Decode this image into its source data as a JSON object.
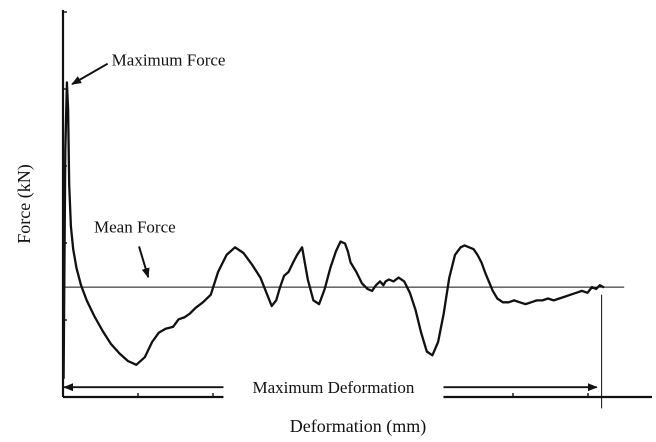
{
  "chart_data": {
    "type": "line",
    "title": "",
    "xlabel": "Deformation (mm)",
    "ylabel": "Force (kN)",
    "xlim": [
      0,
      10
    ],
    "ylim": [
      0,
      10
    ],
    "grid": false,
    "legend": "none",
    "x_tick_count": 8,
    "y_tick_count": 6,
    "series": [
      {
        "color": "#111111",
        "x": [
          0.01,
          0.04,
          0.07,
          0.09,
          0.11,
          0.14,
          0.18,
          0.24,
          0.32,
          0.42,
          0.55,
          0.7,
          0.85,
          1.0,
          1.15,
          1.3,
          1.45,
          1.58,
          1.7,
          1.82,
          1.95,
          2.05,
          2.15,
          2.25,
          2.35,
          2.48,
          2.62,
          2.75,
          2.9,
          3.05,
          3.2,
          3.35,
          3.5,
          3.62,
          3.7,
          3.78,
          3.85,
          3.92,
          4.0,
          4.08,
          4.15,
          4.24,
          4.34,
          4.44,
          4.54,
          4.64,
          4.74,
          4.84,
          4.92,
          5.0,
          5.05,
          5.1,
          5.2,
          5.3,
          5.4,
          5.48,
          5.55,
          5.62,
          5.68,
          5.72,
          5.78,
          5.86,
          5.95,
          6.05,
          6.15,
          6.25,
          6.35,
          6.45,
          6.55,
          6.65,
          6.75,
          6.85,
          6.95,
          7.05,
          7.12,
          7.2,
          7.28,
          7.35,
          7.42,
          7.48,
          7.55,
          7.62,
          7.7,
          7.8,
          7.9,
          8.0,
          8.1,
          8.2,
          8.3,
          8.4,
          8.5,
          8.6,
          8.7,
          8.8,
          8.9,
          9.0,
          9.1,
          9.2,
          9.3,
          9.38,
          9.45,
          9.52,
          9.58
        ],
        "y": [
          0.5,
          6.5,
          8.3,
          7.6,
          5.6,
          4.5,
          3.9,
          3.4,
          2.95,
          2.55,
          2.15,
          1.75,
          1.4,
          1.15,
          0.95,
          0.85,
          1.05,
          1.45,
          1.7,
          1.8,
          1.85,
          2.05,
          2.1,
          2.2,
          2.35,
          2.5,
          2.7,
          3.3,
          3.75,
          3.95,
          3.8,
          3.5,
          3.15,
          2.7,
          2.4,
          2.55,
          2.9,
          3.2,
          3.3,
          3.55,
          3.75,
          3.95,
          3.1,
          2.55,
          2.45,
          2.85,
          3.4,
          3.85,
          4.1,
          4.05,
          3.85,
          3.55,
          3.3,
          3.0,
          2.85,
          2.8,
          2.95,
          3.05,
          2.95,
          3.05,
          3.1,
          3.05,
          3.15,
          3.05,
          2.75,
          2.3,
          1.7,
          1.2,
          1.1,
          1.45,
          2.2,
          3.15,
          3.75,
          3.95,
          4.0,
          3.95,
          3.9,
          3.75,
          3.55,
          3.3,
          3.05,
          2.8,
          2.6,
          2.5,
          2.5,
          2.55,
          2.5,
          2.45,
          2.5,
          2.55,
          2.55,
          2.6,
          2.55,
          2.6,
          2.65,
          2.7,
          2.75,
          2.8,
          2.75,
          2.9,
          2.85,
          2.95,
          2.9
        ]
      }
    ],
    "reference_lines": [
      {
        "orientation": "horizontal",
        "y": 2.9,
        "x_from": 0,
        "x_to": 9.95,
        "color": "#111111"
      },
      {
        "orientation": "vertical",
        "x": 9.55,
        "y_from": 2.7,
        "y_to": -0.3,
        "color": "#111111"
      }
    ],
    "annotations": {
      "max_force": {
        "text": "Maximum Force",
        "target_x": 0.09,
        "target_y": 8.15,
        "text_x": 0.65,
        "text_y": 8.9
      },
      "mean_force": {
        "text": "Mean Force",
        "target_x": 1.6,
        "target_y": 2.95,
        "text_x": 0.55,
        "text_y": 4.5
      },
      "max_deformation": {
        "text": "Maximum Deformation",
        "x_from": 0.02,
        "x_to": 9.5,
        "y": 0.1
      }
    }
  }
}
